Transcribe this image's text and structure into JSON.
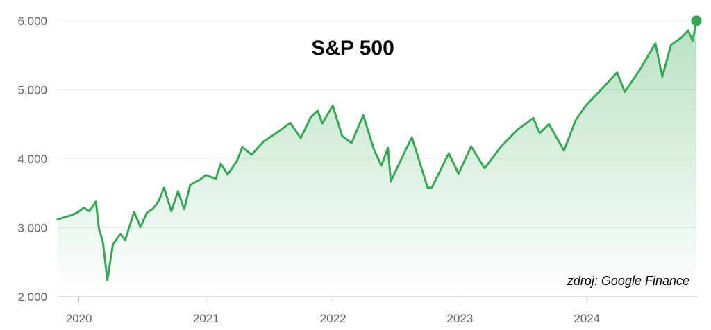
{
  "chart_data": {
    "type": "area",
    "title": "S&P 500",
    "source_note": "zdroj: Google Finance",
    "xlabel": "",
    "ylabel": "",
    "y_ticks": [
      {
        "value": 2000,
        "label": "2,000"
      },
      {
        "value": 3000,
        "label": "3,000"
      },
      {
        "value": 4000,
        "label": "4,000"
      },
      {
        "value": 5000,
        "label": "5,000"
      },
      {
        "value": 6000,
        "label": "6,000"
      }
    ],
    "x_ticks": [
      {
        "value": "2020-01-01",
        "label": "2020"
      },
      {
        "value": "2021-01-01",
        "label": "2021"
      },
      {
        "value": "2022-01-01",
        "label": "2022"
      },
      {
        "value": "2023-01-01",
        "label": "2023"
      },
      {
        "value": "2024-01-01",
        "label": "2024"
      }
    ],
    "xlim": [
      "2019-11-01",
      "2024-11-15"
    ],
    "ylim": [
      2000,
      6200
    ],
    "grid": true,
    "colors": {
      "line": "#34a853",
      "area_top": "#34a853",
      "grid": "#e8eaed",
      "axis": "#bdc1c6"
    },
    "series": [
      {
        "points": [
          [
            "2019-11-01",
            3120
          ],
          [
            "2019-11-20",
            3150
          ],
          [
            "2019-12-10",
            3180
          ],
          [
            "2019-12-31",
            3230
          ],
          [
            "2020-01-15",
            3290
          ],
          [
            "2020-01-31",
            3240
          ],
          [
            "2020-02-19",
            3380
          ],
          [
            "2020-02-28",
            2980
          ],
          [
            "2020-03-10",
            2800
          ],
          [
            "2020-03-23",
            2240
          ],
          [
            "2020-04-08",
            2760
          ],
          [
            "2020-04-30",
            2910
          ],
          [
            "2020-05-13",
            2820
          ],
          [
            "2020-06-08",
            3230
          ],
          [
            "2020-06-26",
            3010
          ],
          [
            "2020-07-15",
            3220
          ],
          [
            "2020-07-31",
            3270
          ],
          [
            "2020-08-18",
            3390
          ],
          [
            "2020-09-02",
            3580
          ],
          [
            "2020-09-23",
            3240
          ],
          [
            "2020-10-12",
            3530
          ],
          [
            "2020-10-30",
            3270
          ],
          [
            "2020-11-16",
            3620
          ],
          [
            "2020-12-15",
            3700
          ],
          [
            "2020-12-31",
            3760
          ],
          [
            "2021-01-29",
            3710
          ],
          [
            "2021-02-12",
            3930
          ],
          [
            "2021-03-04",
            3770
          ],
          [
            "2021-03-31",
            3970
          ],
          [
            "2021-04-15",
            4170
          ],
          [
            "2021-05-12",
            4060
          ],
          [
            "2021-06-15",
            4250
          ],
          [
            "2021-07-30",
            4400
          ],
          [
            "2021-08-31",
            4520
          ],
          [
            "2021-09-30",
            4300
          ],
          [
            "2021-10-29",
            4600
          ],
          [
            "2021-11-18",
            4700
          ],
          [
            "2021-12-01",
            4510
          ],
          [
            "2021-12-31",
            4770
          ],
          [
            "2022-01-27",
            4330
          ],
          [
            "2022-02-23",
            4230
          ],
          [
            "2022-03-29",
            4630
          ],
          [
            "2022-04-29",
            4130
          ],
          [
            "2022-05-20",
            3900
          ],
          [
            "2022-06-08",
            4160
          ],
          [
            "2022-06-16",
            3670
          ],
          [
            "2022-07-29",
            4130
          ],
          [
            "2022-08-16",
            4310
          ],
          [
            "2022-09-30",
            3580
          ],
          [
            "2022-10-12",
            3580
          ],
          [
            "2022-11-30",
            4080
          ],
          [
            "2022-12-28",
            3780
          ],
          [
            "2023-02-02",
            4180
          ],
          [
            "2023-03-13",
            3860
          ],
          [
            "2023-04-28",
            4170
          ],
          [
            "2023-06-15",
            4420
          ],
          [
            "2023-07-31",
            4590
          ],
          [
            "2023-08-18",
            4370
          ],
          [
            "2023-09-14",
            4500
          ],
          [
            "2023-10-27",
            4120
          ],
          [
            "2023-11-30",
            4560
          ],
          [
            "2023-12-29",
            4770
          ],
          [
            "2024-02-29",
            5100
          ],
          [
            "2024-03-28",
            5250
          ],
          [
            "2024-04-19",
            4970
          ],
          [
            "2024-05-31",
            5280
          ],
          [
            "2024-07-16",
            5670
          ],
          [
            "2024-08-05",
            5190
          ],
          [
            "2024-08-30",
            5650
          ],
          [
            "2024-09-30",
            5760
          ],
          [
            "2024-10-18",
            5860
          ],
          [
            "2024-10-31",
            5710
          ],
          [
            "2024-11-11",
            6000
          ]
        ]
      }
    ]
  }
}
